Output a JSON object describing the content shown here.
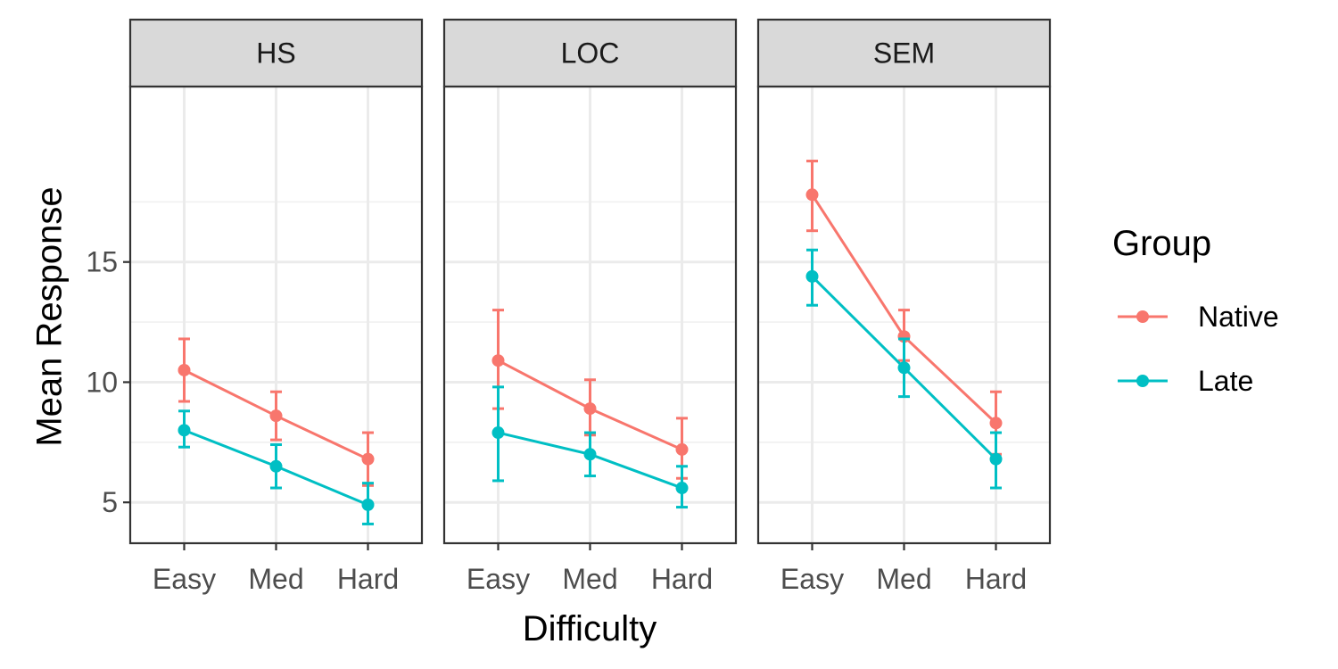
{
  "chart_data": {
    "type": "line",
    "xlabel": "Difficulty",
    "ylabel": "Mean Response",
    "ylim": [
      3.3,
      22.3
    ],
    "yticks": [
      5,
      10,
      15
    ],
    "grid": true,
    "legend": {
      "title": "Group",
      "position": "right"
    },
    "categories": [
      "Easy",
      "Med",
      "Hard"
    ],
    "series_styles": [
      {
        "name": "Native",
        "color": "#F8766D"
      },
      {
        "name": "Late",
        "color": "#00BFC4"
      }
    ],
    "panels": [
      {
        "label": "HS",
        "series": [
          {
            "name": "Native",
            "values": [
              10.5,
              8.6,
              6.8
            ],
            "lower": [
              9.2,
              7.6,
              5.7
            ],
            "upper": [
              11.8,
              9.6,
              7.9
            ]
          },
          {
            "name": "Late",
            "values": [
              8.0,
              6.5,
              4.9
            ],
            "lower": [
              7.3,
              5.6,
              4.1
            ],
            "upper": [
              8.8,
              7.4,
              5.8
            ]
          }
        ]
      },
      {
        "label": "LOC",
        "series": [
          {
            "name": "Native",
            "values": [
              10.9,
              8.9,
              7.2
            ],
            "lower": [
              8.9,
              7.8,
              6.0
            ],
            "upper": [
              13.0,
              10.1,
              8.5
            ]
          },
          {
            "name": "Late",
            "values": [
              7.9,
              7.0,
              5.6
            ],
            "lower": [
              5.9,
              6.1,
              4.8
            ],
            "upper": [
              9.8,
              7.9,
              6.5
            ]
          }
        ]
      },
      {
        "label": "SEM",
        "series": [
          {
            "name": "Native",
            "values": [
              17.8,
              11.9,
              8.3
            ],
            "lower": [
              16.3,
              10.9,
              7.0
            ],
            "upper": [
              19.2,
              13.0,
              9.6
            ]
          },
          {
            "name": "Late",
            "values": [
              14.4,
              10.6,
              6.8
            ],
            "lower": [
              13.2,
              9.4,
              5.6
            ],
            "upper": [
              15.5,
              11.8,
              7.9
            ]
          }
        ]
      }
    ]
  }
}
